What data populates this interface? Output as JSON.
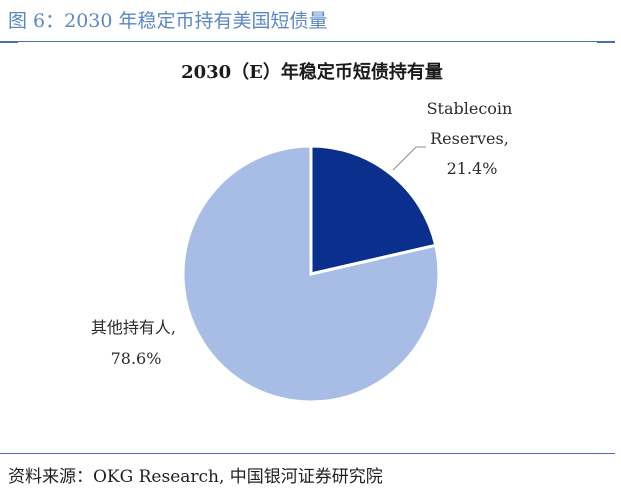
{
  "figure": {
    "caption": "图 6：2030 年稳定币持有美国短债量",
    "source": "资料来源：OKG Research,  中国银河证券研究院"
  },
  "colors": {
    "caption_blue": "#5b87c5",
    "rule_blue": "#4a6fb0",
    "slice_dark": "#0b2f8c",
    "slice_light": "#a8bde6"
  },
  "chart_data": {
    "type": "pie",
    "title": "2030（E）年稳定币短债持有量",
    "start": "12 o'clock",
    "direction": "clockwise",
    "slices": [
      {
        "name": "Stablecoin Reserves",
        "label_lines": [
          "Stablecoin",
          "Reserves,",
          "21.4%"
        ],
        "value": 21.4,
        "color": "#0b2f8c"
      },
      {
        "name": "其他持有人",
        "label_lines": [
          "其他持有人,",
          "78.6%"
        ],
        "value": 78.6,
        "color": "#a8bde6"
      }
    ]
  }
}
